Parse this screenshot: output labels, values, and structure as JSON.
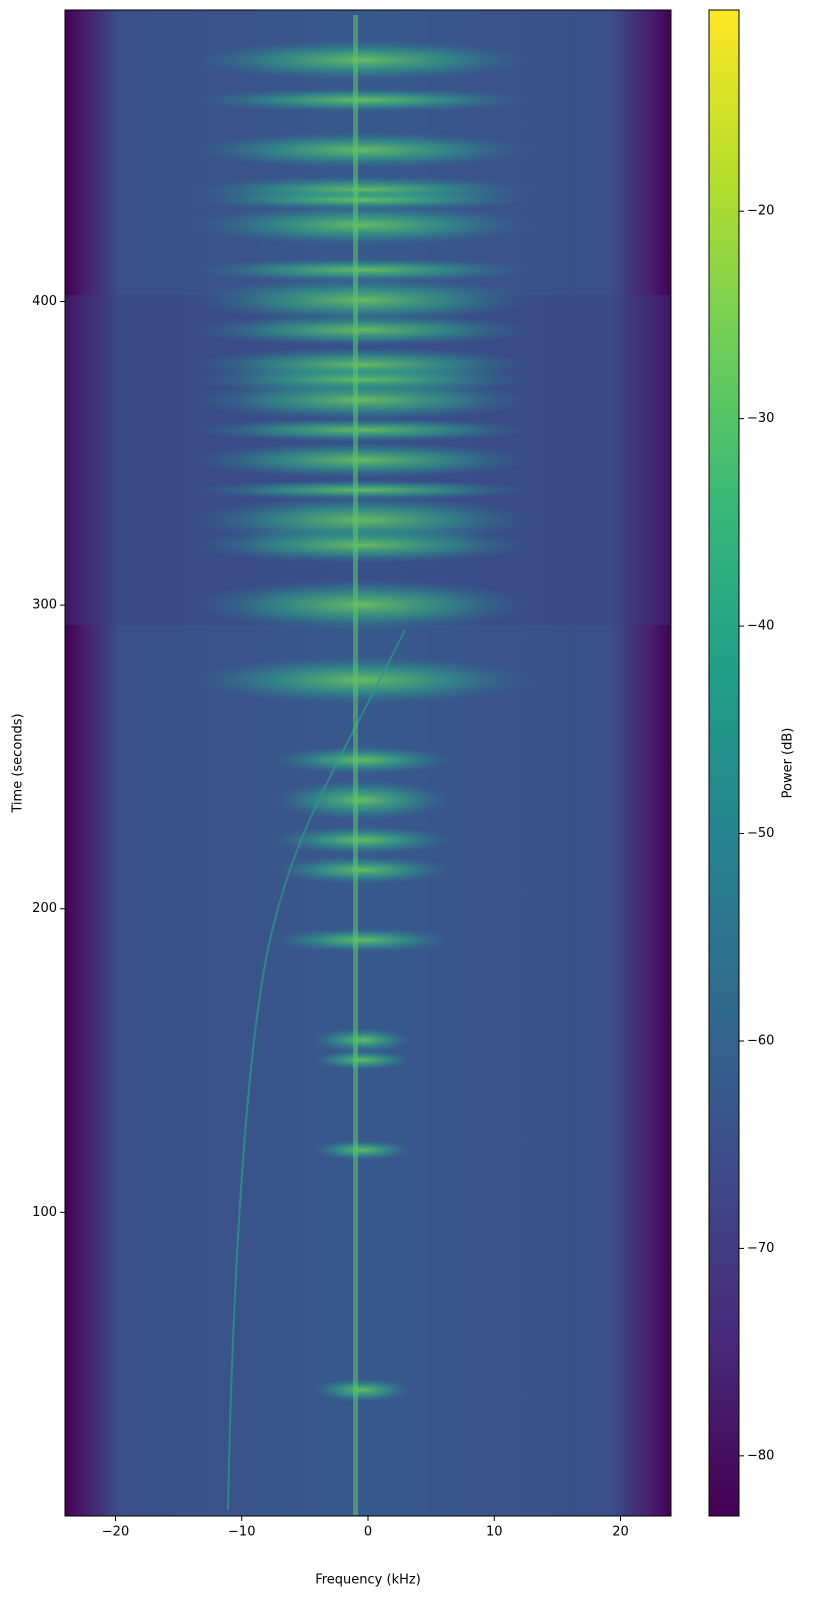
{
  "chart_data": {
    "type": "spectrogram",
    "xlabel": "Frequency (kHz)",
    "ylabel": "Time (seconds)",
    "xlim": [
      -24,
      24
    ],
    "ylim": [
      0,
      496
    ],
    "xticks": [
      {
        "value": -20,
        "label": "−20"
      },
      {
        "value": -10,
        "label": "−10"
      },
      0,
      10,
      20
    ],
    "yticks": [
      100,
      200,
      300,
      400
    ],
    "colormap": "viridis",
    "colorbar": {
      "label": "Power (dB)",
      "lim": [
        -82.9,
        -10.3
      ],
      "ticks": [
        {
          "value": -20,
          "label": "−20"
        },
        {
          "value": -30,
          "label": "−30"
        },
        {
          "value": -40,
          "label": "−40"
        },
        {
          "value": -50,
          "label": "−50"
        },
        {
          "value": -60,
          "label": "−60"
        },
        {
          "value": -70,
          "label": "−70"
        },
        {
          "value": -80,
          "label": "−80"
        }
      ]
    }
  }
}
